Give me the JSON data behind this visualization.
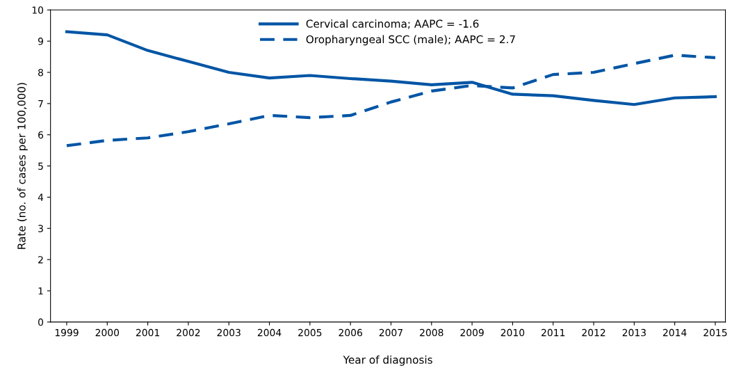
{
  "chart_data": {
    "type": "line",
    "xlabel": "Year of diagnosis",
    "ylabel": "Rate (no. of cases per 100,000)",
    "categories": [
      "1999",
      "2000",
      "2001",
      "2002",
      "2003",
      "2004",
      "2005",
      "2006",
      "2007",
      "2008",
      "2009",
      "2010",
      "2011",
      "2012",
      "2013",
      "2014",
      "2015"
    ],
    "series": [
      {
        "name": "Cervical carcinoma; AAPC = -1.6",
        "color": "#0055a5",
        "line_style": "solid",
        "values": [
          9.3,
          9.2,
          8.7,
          8.35,
          8.0,
          7.82,
          7.9,
          7.8,
          7.72,
          7.6,
          7.68,
          7.3,
          7.25,
          7.1,
          6.97,
          7.18,
          7.22
        ]
      },
      {
        "name": "Oropharyngeal SCC (male); AAPC = 2.7",
        "color": "#0055a5",
        "line_style": "dashed",
        "values": [
          5.65,
          5.82,
          5.9,
          6.1,
          6.35,
          6.62,
          6.55,
          6.62,
          7.05,
          7.4,
          7.58,
          7.5,
          7.93,
          8.0,
          8.28,
          8.55,
          8.47
        ]
      }
    ],
    "ylim": [
      0,
      10
    ],
    "yticks": [
      0,
      1,
      2,
      3,
      4,
      5,
      6,
      7,
      8,
      9,
      10
    ],
    "grid": false,
    "legend": "top"
  }
}
